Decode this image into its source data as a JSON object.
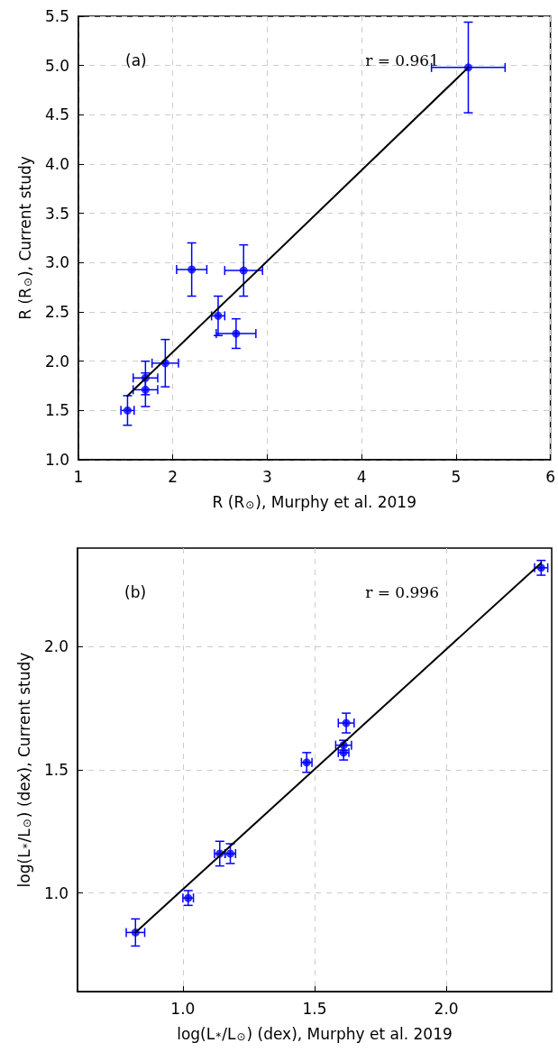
{
  "chart_data": [
    {
      "type": "scatter",
      "xlabel": "R (R$_{⊙}$), Murphy et al. 2019",
      "ylabel": "R (R$_{⊙}$), Current study",
      "annotations": [
        "(a)",
        "r = 0.961"
      ],
      "xlim": [
        1,
        6
      ],
      "ylim": [
        1,
        5.5
      ],
      "xticks": [
        1,
        2,
        3,
        4,
        5,
        6
      ],
      "yticks": [
        {
          "value": 1,
          "label": "1.0"
        },
        {
          "value": 1.5,
          "label": "1.5"
        },
        {
          "value": 2,
          "label": "2.0"
        },
        {
          "value": 2.5,
          "label": "2.5"
        },
        {
          "value": 3,
          "label": "3.0"
        },
        {
          "value": 3.5,
          "label": "3.5"
        },
        {
          "value": 4,
          "label": "4.0"
        },
        {
          "value": 4.5,
          "label": "4.5"
        },
        {
          "value": 5,
          "label": "5.0"
        },
        {
          "value": 5.5,
          "label": "5.5"
        }
      ],
      "grid": true,
      "series": [
        {
          "color": "#0000ff",
          "marker": "circle",
          "x": [
            1.52,
            1.71,
            1.71,
            1.92,
            2.48,
            2.67,
            2.2,
            2.75,
            5.13
          ],
          "values": [
            1.5,
            1.71,
            1.83,
            1.98,
            2.46,
            2.28,
            2.93,
            2.92,
            4.98
          ],
          "errors": [
            0.15,
            0.17,
            0.17,
            0.24,
            0.2,
            0.15,
            0.27,
            0.26,
            0.46
          ],
          "xerrors": [
            0.07,
            0.13,
            0.13,
            0.14,
            0.07,
            0.21,
            0.16,
            0.2,
            0.39
          ]
        },
        {
          "type": "line",
          "color": "#000000",
          "marker": "none",
          "x": [
            1.52,
            5.13
          ],
          "values": [
            1.65,
            4.98
          ]
        }
      ]
    },
    {
      "type": "scatter",
      "xlabel": "log(L$_{*}$/L$_{⊙}$) (dex), Murphy et al. 2019",
      "ylabel": "log(L$_{*}$/L$_{⊙}$) (dex), Current study",
      "annotations": [
        "(b)",
        "r = 0.996"
      ],
      "xlim": [
        0.6,
        2.4
      ],
      "ylim": [
        0.6,
        2.4
      ],
      "xticks": [
        {
          "value": 1,
          "label": "1.0"
        },
        {
          "value": 1.5,
          "label": "1.5"
        },
        {
          "value": 2,
          "label": "2.0"
        }
      ],
      "yticks": [
        {
          "value": 1,
          "label": "1.0"
        },
        {
          "value": 1.5,
          "label": "1.5"
        },
        {
          "value": 2,
          "label": "2.0"
        }
      ],
      "grid": true,
      "series": [
        {
          "color": "#0000ff",
          "marker": "circle",
          "x": [
            0.82,
            1.02,
            1.14,
            1.18,
            1.47,
            1.61,
            1.61,
            1.62,
            2.36
          ],
          "values": [
            0.84,
            0.98,
            1.16,
            1.16,
            1.53,
            1.57,
            1.6,
            1.69,
            2.32
          ],
          "errors": [
            0.055,
            0.03,
            0.05,
            0.04,
            0.04,
            0.03,
            0.02,
            0.04,
            0.03
          ],
          "xerrors": [
            0.035,
            0.02,
            0.02,
            0.02,
            0.02,
            0.02,
            0.03,
            0.03,
            0.025
          ]
        },
        {
          "type": "line",
          "color": "#000000",
          "marker": "none",
          "x": [
            0.82,
            2.36
          ],
          "values": [
            0.84,
            2.34
          ]
        }
      ]
    }
  ]
}
